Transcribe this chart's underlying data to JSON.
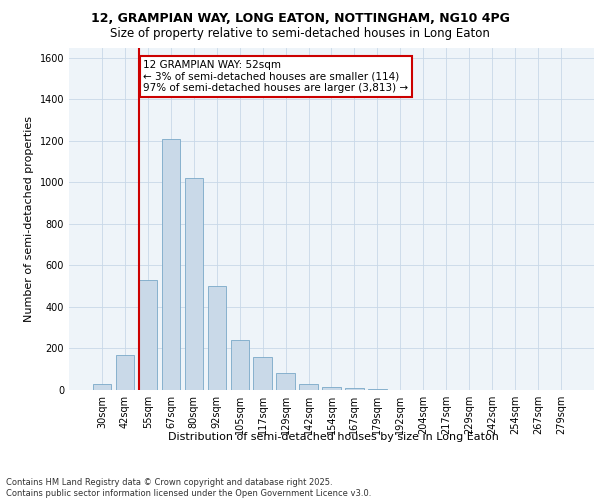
{
  "title_line1": "12, GRAMPIAN WAY, LONG EATON, NOTTINGHAM, NG10 4PG",
  "title_line2": "Size of property relative to semi-detached houses in Long Eaton",
  "xlabel": "Distribution of semi-detached houses by size in Long Eaton",
  "ylabel": "Number of semi-detached properties",
  "categories": [
    "30sqm",
    "42sqm",
    "55sqm",
    "67sqm",
    "80sqm",
    "92sqm",
    "105sqm",
    "117sqm",
    "129sqm",
    "142sqm",
    "154sqm",
    "167sqm",
    "179sqm",
    "192sqm",
    "204sqm",
    "217sqm",
    "229sqm",
    "242sqm",
    "254sqm",
    "267sqm",
    "279sqm"
  ],
  "values": [
    30,
    170,
    530,
    1210,
    1020,
    500,
    240,
    160,
    80,
    30,
    15,
    8,
    3,
    2,
    0,
    0,
    0,
    0,
    0,
    0,
    0
  ],
  "bar_color": "#c9d9e8",
  "bar_edge_color": "#7aa8c8",
  "highlight_vline_x": 1.6,
  "highlight_color": "#cc0000",
  "annotation_text": "12 GRAMPIAN WAY: 52sqm\n← 3% of semi-detached houses are smaller (114)\n97% of semi-detached houses are larger (3,813) →",
  "annotation_box_color": "#ffffff",
  "annotation_box_edge_color": "#cc0000",
  "ylim": [
    0,
    1650
  ],
  "yticks": [
    0,
    200,
    400,
    600,
    800,
    1000,
    1200,
    1400,
    1600
  ],
  "grid_color": "#c8d8e8",
  "bg_color": "#eef4f9",
  "footer_text": "Contains HM Land Registry data © Crown copyright and database right 2025.\nContains public sector information licensed under the Open Government Licence v3.0.",
  "title_fontsize": 9,
  "subtitle_fontsize": 8.5,
  "axis_label_fontsize": 8,
  "tick_fontsize": 7,
  "annotation_fontsize": 7.5,
  "footer_fontsize": 6
}
